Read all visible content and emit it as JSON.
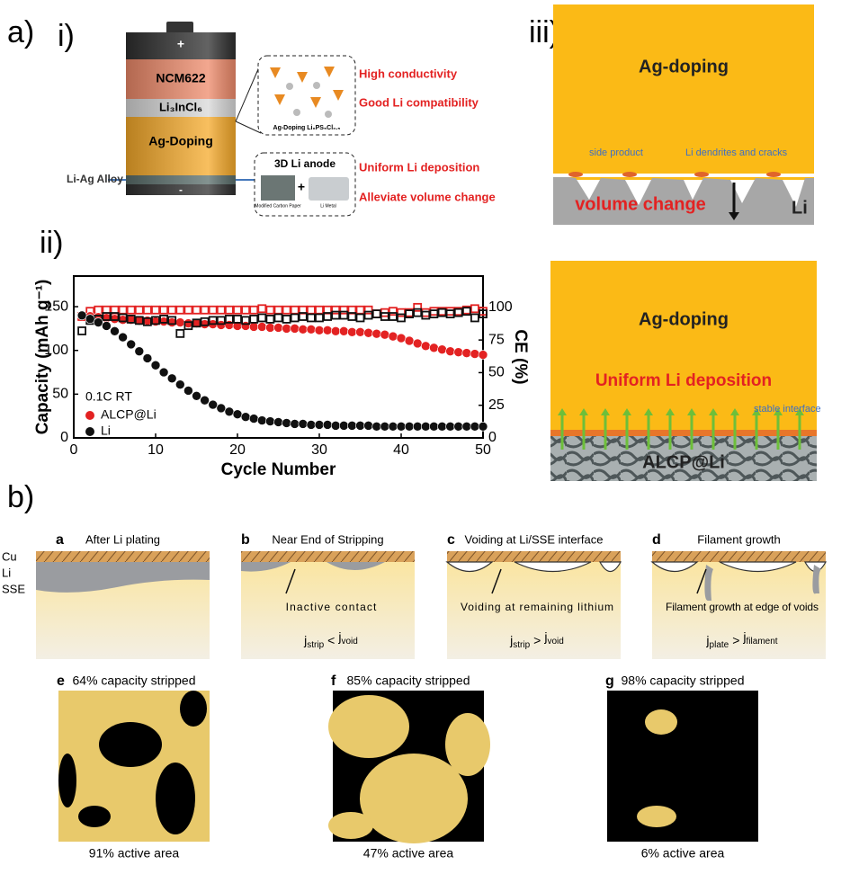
{
  "panel_labels": {
    "a": "a)",
    "b": "b)",
    "i": "i)",
    "ii": "ii)",
    "iii": "iii)"
  },
  "battery": {
    "plus": "+",
    "minus": "-",
    "cathode": "NCM622",
    "electrolyte": "Li₃InCl₆",
    "doping": "Ag-Doping",
    "alloy": "Li-Ag Alloy",
    "inset_caption": "Ag-Doping Li₆PS₅Cl₀.₅",
    "anode_title": "3D Li anode",
    "carbon_paper": "Modified Carbon Paper",
    "li_metal": "Li Metal",
    "combine": "+"
  },
  "features": [
    "High conductivity",
    "Good Li compatibility",
    "Uniform Li deposition",
    "Alleviate volume change"
  ],
  "iii_top": {
    "layer": "Ag-doping",
    "side_product": "side product",
    "dendrites": "Li dendrites and cracks",
    "volume": "volume change",
    "li": "Li"
  },
  "iii_bottom": {
    "layer": "Ag-doping",
    "deposition": "Uniform Li deposition",
    "interface": "stable interface",
    "anode": "ALCP@Li"
  },
  "chart_data": {
    "type": "scatter",
    "x": [
      1,
      2,
      3,
      4,
      5,
      6,
      7,
      8,
      9,
      10,
      11,
      12,
      13,
      14,
      15,
      16,
      17,
      18,
      19,
      20,
      21,
      22,
      23,
      24,
      25,
      26,
      27,
      28,
      29,
      30,
      31,
      32,
      33,
      34,
      35,
      36,
      37,
      38,
      39,
      40,
      41,
      42,
      43,
      44,
      45,
      46,
      47,
      48,
      49,
      50
    ],
    "series": [
      {
        "name": "ALCP@Li",
        "color": "#e32222",
        "values": [
          140,
          139,
          138,
          137,
          136,
          135,
          135,
          134,
          134,
          133,
          133,
          132,
          132,
          131,
          131,
          130,
          130,
          129,
          129,
          128,
          128,
          127,
          127,
          126,
          126,
          125,
          125,
          124,
          124,
          123,
          123,
          122,
          122,
          121,
          121,
          120,
          119,
          118,
          116,
          114,
          111,
          108,
          105,
          103,
          101,
          99,
          98,
          97,
          96,
          95
        ],
        "ce_values": [
          93,
          97,
          98,
          98,
          98,
          98,
          98,
          98,
          98,
          98,
          98,
          98,
          98,
          98,
          98,
          98,
          98,
          98,
          98,
          98,
          98,
          98,
          99,
          98,
          98,
          98,
          98,
          98,
          98,
          98,
          98,
          98,
          98,
          98,
          98,
          98,
          95,
          96,
          97,
          96,
          96,
          100,
          96,
          97,
          97,
          97,
          97,
          98,
          99,
          97
        ]
      },
      {
        "name": "Li",
        "color": "#111111",
        "values": [
          140,
          136,
          132,
          128,
          122,
          115,
          107,
          99,
          91,
          83,
          75,
          68,
          61,
          54,
          48,
          43,
          38,
          34,
          30,
          27,
          24,
          22,
          20,
          19,
          18,
          17,
          16,
          16,
          15,
          15,
          15,
          14,
          14,
          14,
          14,
          14,
          13,
          13,
          13,
          13,
          13,
          13,
          13,
          13,
          13,
          13,
          13,
          13,
          13,
          13
        ],
        "ce_values": [
          82,
          90,
          91,
          93,
          93,
          92,
          91,
          90,
          89,
          90,
          91,
          90,
          80,
          86,
          88,
          89,
          90,
          90,
          91,
          91,
          90,
          91,
          92,
          91,
          92,
          91,
          92,
          93,
          92,
          92,
          93,
          94,
          94,
          93,
          92,
          94,
          95,
          93,
          93,
          92,
          95,
          96,
          94,
          95,
          96,
          95,
          96,
          97,
          92,
          95
        ]
      }
    ],
    "xlim": [
      0,
      50
    ],
    "xticks": [
      0,
      10,
      20,
      30,
      40,
      50
    ],
    "ylim": [
      0,
      185
    ],
    "yticks": [
      0,
      50,
      100,
      150
    ],
    "y2lim": [
      0,
      124
    ],
    "y2ticks": [
      0,
      25,
      50,
      75,
      100
    ],
    "x_label": "Cycle Number",
    "y_label": "Capacity (mAh g⁻¹)",
    "y2_label": "CE (%)",
    "annotation": "0.1C RT"
  },
  "stages": [
    {
      "letter": "a",
      "title": "After Li plating",
      "layers": [
        "Cu",
        "Li",
        "SSE"
      ]
    },
    {
      "letter": "b",
      "title": "Near End of Stripping",
      "note": "Inactive contact",
      "eq": {
        "lhs": "j",
        "lhs_sub": "strip",
        "op": "<",
        "rhs": "j",
        "rhs_sub": "void"
      }
    },
    {
      "letter": "c",
      "title": "Voiding at Li/SSE interface",
      "note": "Voiding at remaining lithium",
      "eq": {
        "lhs": "j",
        "lhs_sub": "strip",
        "op": ">",
        "rhs": "j",
        "rhs_sub": "void"
      }
    },
    {
      "letter": "d",
      "title": "Filament growth",
      "note": "Filament growth at edge of voids",
      "eq": {
        "lhs": "j",
        "lhs_sub": "plate",
        "op": ">",
        "rhs": "j",
        "rhs_sub": "filament"
      }
    }
  ],
  "maps": [
    {
      "letter": "e",
      "title": "64% capacity stripped",
      "caption": "91% active area"
    },
    {
      "letter": "f",
      "title": "85% capacity stripped",
      "caption": "47% active area"
    },
    {
      "letter": "g",
      "title": "98% capacity stripped",
      "caption": "6% active area"
    }
  ]
}
